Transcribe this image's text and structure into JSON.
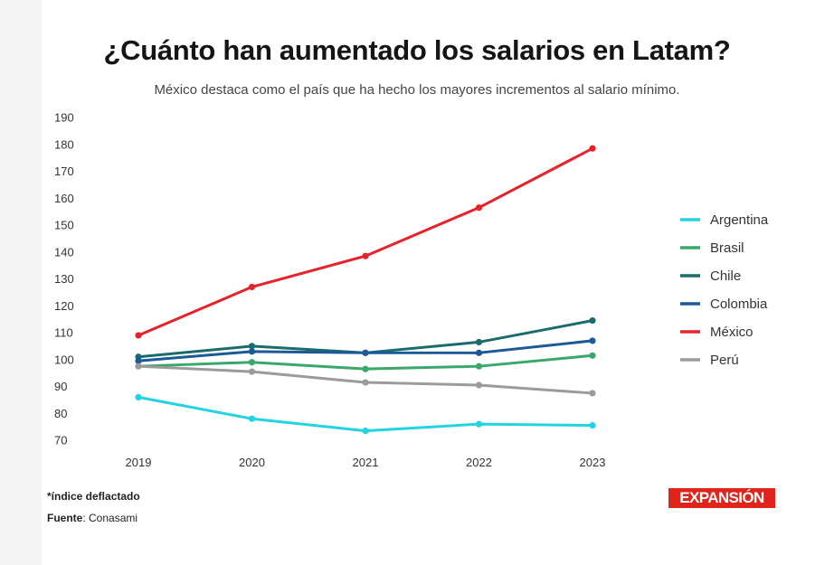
{
  "header": {
    "title": "¿Cuánto han aumentado los salarios en Latam?",
    "subtitle": "México destaca como el país que ha hecho los mayores incrementos al salario mínimo."
  },
  "footer": {
    "note": "*índice deflactado",
    "source_label": "Fuente",
    "source_value": ": Conasami",
    "logo_text": "EXPANSIÓN"
  },
  "chart_data": {
    "type": "line",
    "x": [
      "2019",
      "2020",
      "2021",
      "2022",
      "2023"
    ],
    "ylim": [
      70,
      190
    ],
    "yticks": [
      190,
      180,
      170,
      160,
      150,
      140,
      130,
      120,
      110,
      100,
      90,
      80,
      70
    ],
    "grid": false,
    "legend_position": "right",
    "series": [
      {
        "name": "Argentina",
        "color": "#22d3e0",
        "values": [
          86,
          78,
          73.5,
          76,
          75.5
        ]
      },
      {
        "name": "Brasil",
        "color": "#3aa86b",
        "values": [
          97.5,
          99,
          96.5,
          97.5,
          101.5
        ]
      },
      {
        "name": "Chile",
        "color": "#1a6b6b",
        "values": [
          101,
          105,
          102.5,
          106.5,
          114.5
        ]
      },
      {
        "name": "Colombia",
        "color": "#1a5a96",
        "values": [
          99.5,
          103,
          102.5,
          102.5,
          107
        ]
      },
      {
        "name": "México",
        "color": "#e8222a",
        "values": [
          109,
          127,
          138.5,
          156.5,
          178.5
        ]
      },
      {
        "name": "Perú",
        "color": "#9b9b9b",
        "values": [
          97.5,
          95.5,
          91.5,
          90.5,
          87.5
        ]
      }
    ]
  }
}
